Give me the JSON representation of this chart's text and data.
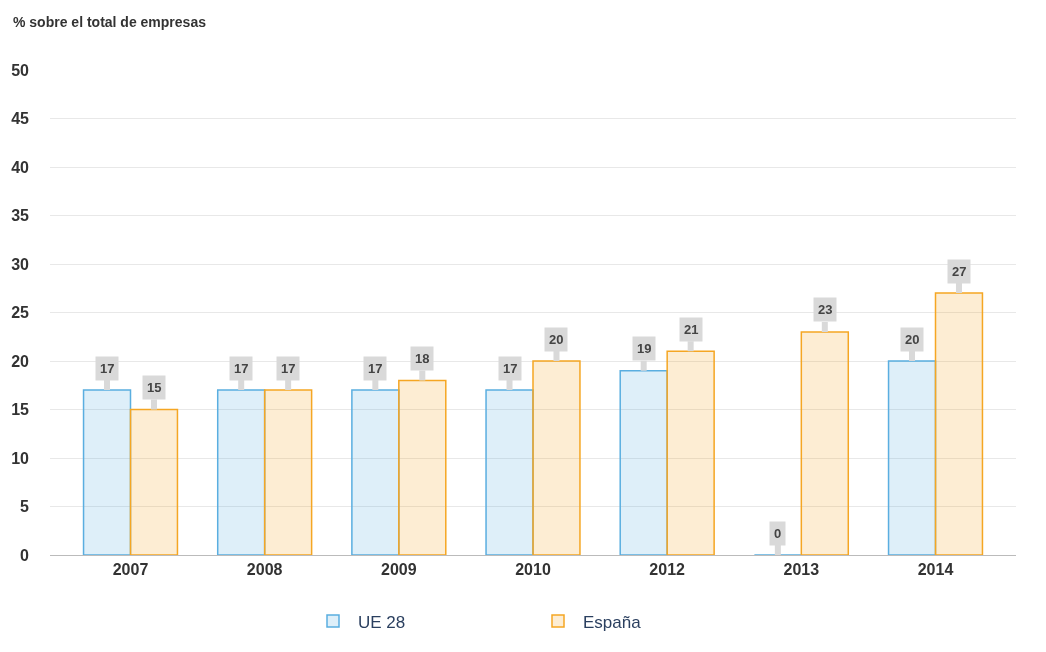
{
  "chart_data": {
    "type": "bar",
    "ylabel": "% sobre el total de empresas",
    "categories": [
      "2007",
      "2008",
      "2009",
      "2010",
      "2012",
      "2013",
      "2014"
    ],
    "series": [
      {
        "name": "UE 28",
        "color": "#5aaee0",
        "values": [
          17,
          17,
          17,
          17,
          19,
          0,
          20
        ]
      },
      {
        "name": "España",
        "color": "#f5a623",
        "values": [
          15,
          17,
          18,
          20,
          21,
          23,
          27
        ]
      }
    ],
    "data_labels": true,
    "ylim": [
      0,
      50
    ],
    "yticks": [
      0,
      5,
      10,
      15,
      20,
      25,
      30,
      35,
      40,
      45,
      50
    ],
    "grid": "y",
    "legend": "bottom"
  }
}
